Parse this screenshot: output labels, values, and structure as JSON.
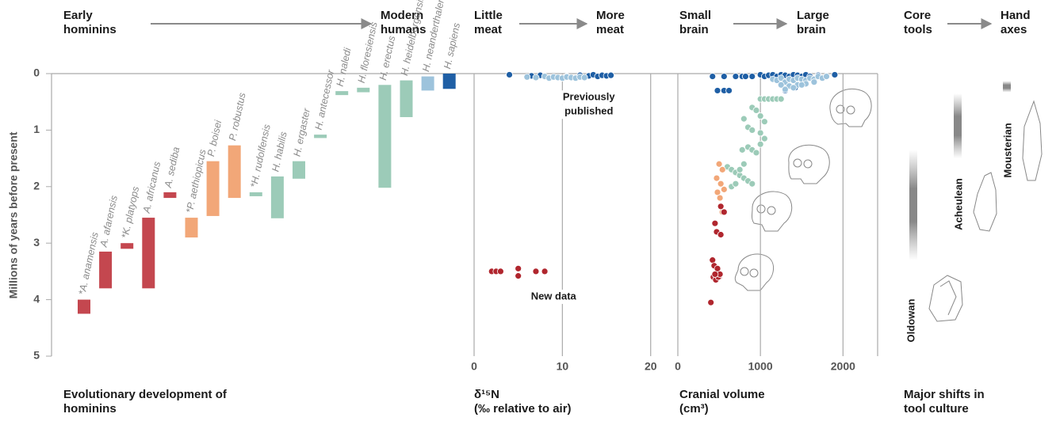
{
  "chart_data": [
    {
      "type": "range_bar",
      "header": [
        [
          "Early",
          "hominins"
        ],
        [
          "Modern",
          "humans"
        ]
      ],
      "title": [
        "Evolutionary development of",
        "hominins"
      ],
      "ylabel": "Millions of years before present",
      "ylim": [
        0,
        5
      ],
      "yticks": [
        0,
        1,
        2,
        3,
        4,
        5
      ],
      "categories": [
        "*A. anamensis",
        "A. afarensis",
        "*K. platyops",
        "A. africanus",
        "A. sediba",
        "*P. aethiopicus",
        "P. boisei",
        "P. robustus",
        "*H. rudolfensis",
        "H. habilis",
        "H. ergaster",
        "H. antecessor",
        "H. naledi",
        "H. floresiensis",
        "H. erectus",
        "H. heidelbergensis",
        "H. neanderthalensis",
        "H. sapiens"
      ],
      "values": [
        [
          4.0,
          4.25
        ],
        [
          3.15,
          3.8
        ],
        [
          3.0,
          3.1
        ],
        [
          2.55,
          3.8
        ],
        [
          2.1,
          2.2
        ],
        [
          2.55,
          2.9
        ],
        [
          1.55,
          2.52
        ],
        [
          1.27,
          2.2
        ],
        [
          2.1,
          2.17
        ],
        [
          1.82,
          2.56
        ],
        [
          1.55,
          1.86
        ],
        [
          1.08,
          1.14
        ],
        [
          0.31,
          0.38
        ],
        [
          0.25,
          0.33
        ],
        [
          0.2,
          2.02
        ],
        [
          0.12,
          0.77
        ],
        [
          0.05,
          0.3
        ],
        [
          0,
          0.27
        ]
      ],
      "colors": [
        "#c4474f",
        "#c4474f",
        "#c4474f",
        "#c4474f",
        "#c4474f",
        "#f2a778",
        "#f2a778",
        "#f2a778",
        "#9ccbb8",
        "#9ccbb8",
        "#9ccbb8",
        "#9ccbb8",
        "#9ccbb8",
        "#9ccbb8",
        "#9ccbb8",
        "#9ccbb8",
        "#9dc3dc",
        "#1f5fa5"
      ]
    },
    {
      "type": "scatter",
      "header": [
        [
          "Little",
          "meat"
        ],
        [
          "More",
          "meat"
        ]
      ],
      "title": [
        "δ¹⁵N",
        "(‰ relative to air)"
      ],
      "xlim": [
        0,
        22
      ],
      "xticks": [
        0,
        10,
        20
      ],
      "ylim": [
        0,
        5
      ],
      "annotations": [
        {
          "text": [
            "Previously",
            "published"
          ],
          "x": 13,
          "y": 0.55
        },
        {
          "text": [
            "New data"
          ],
          "x": 9,
          "y": 3.95
        }
      ],
      "series": [
        {
          "color": "#1f5fa5",
          "x": [
            4,
            6.5,
            7.5,
            10.5,
            12,
            13,
            13.5,
            14,
            14.5,
            15,
            15.5
          ],
          "values": [
            0.02,
            0.04,
            0.03,
            0.05,
            0.03,
            0.04,
            0.02,
            0.05,
            0.03,
            0.04,
            0.03
          ]
        },
        {
          "color": "#9dc3dc",
          "x": [
            6,
            7,
            8,
            8.5,
            9,
            9.5,
            10,
            10.5,
            11,
            11.5,
            12,
            12.5
          ],
          "values": [
            0.06,
            0.07,
            0.05,
            0.08,
            0.06,
            0.07,
            0.08,
            0.06,
            0.07,
            0.08,
            0.06,
            0.07
          ]
        },
        {
          "color": "#b0262e",
          "x": [
            2,
            2.5,
            3,
            5,
            5,
            7,
            8
          ],
          "values": [
            3.5,
            3.5,
            3.5,
            3.45,
            3.58,
            3.5,
            3.5
          ]
        }
      ]
    },
    {
      "type": "scatter",
      "header": [
        [
          "Small",
          "brain"
        ],
        [
          "Large",
          "brain"
        ]
      ],
      "title": [
        "Cranial volume",
        "(cm³)"
      ],
      "xlim": [
        0,
        2400
      ],
      "xticks": [
        0,
        1000,
        2000
      ],
      "ylim": [
        0,
        5
      ],
      "series": [
        {
          "color": "#1f5fa5",
          "x": [
            420,
            480,
            560,
            700,
            780,
            820,
            900,
            1000,
            1050,
            1100,
            1150,
            1200,
            1250,
            1300,
            1350,
            1400,
            1450,
            1500,
            1550,
            1600,
            1700,
            1800,
            1900,
            560,
            620,
            1300,
            1420
          ],
          "values": [
            0.05,
            0.3,
            0.3,
            0.05,
            0.05,
            0.05,
            0.05,
            0.02,
            0.05,
            0.03,
            0.02,
            0.05,
            0.02,
            0.03,
            0.05,
            0.02,
            0.03,
            0.05,
            0.02,
            0.05,
            0.03,
            0.05,
            0.02,
            0.05,
            0.3,
            0.3,
            0.25
          ]
        },
        {
          "color": "#9dc3dc",
          "x": [
            1150,
            1200,
            1250,
            1300,
            1350,
            1400,
            1450,
            1500,
            1550,
            1600,
            1650,
            1700,
            1750,
            1800,
            1250,
            1350,
            1450,
            1550,
            1650,
            1300,
            1400,
            1500
          ],
          "values": [
            0.1,
            0.12,
            0.08,
            0.15,
            0.1,
            0.12,
            0.08,
            0.1,
            0.12,
            0.08,
            0.1,
            0.05,
            0.08,
            0.05,
            0.2,
            0.22,
            0.2,
            0.18,
            0.15,
            0.28,
            0.25,
            0.2
          ]
        },
        {
          "color": "#9ccbb8",
          "x": [
            1000,
            1050,
            1100,
            1150,
            1200,
            1250,
            900,
            950,
            1000,
            1050,
            800,
            850,
            900,
            1000,
            1050,
            780,
            850,
            900,
            950,
            1000,
            600,
            650,
            700,
            750,
            800,
            850,
            900,
            650,
            700,
            750,
            800
          ],
          "values": [
            0.45,
            0.45,
            0.45,
            0.45,
            0.45,
            0.45,
            0.6,
            0.65,
            0.75,
            0.85,
            0.8,
            0.95,
            1.0,
            1.05,
            1.15,
            1.35,
            1.3,
            1.35,
            1.4,
            1.25,
            1.65,
            1.7,
            1.75,
            1.8,
            1.85,
            1.9,
            1.95,
            2.0,
            1.95,
            1.7,
            1.6
          ]
        },
        {
          "color": "#f2a778",
          "x": [
            500,
            540,
            470,
            520,
            560,
            480,
            510,
            540
          ],
          "values": [
            1.6,
            1.7,
            1.85,
            1.95,
            2.05,
            2.1,
            2.2,
            2.45
          ]
        },
        {
          "color": "#b0262e",
          "x": [
            520,
            560,
            450,
            470,
            520,
            420,
            440,
            480,
            500,
            430,
            460,
            490,
            510,
            450,
            400
          ],
          "values": [
            2.35,
            2.45,
            2.65,
            2.8,
            2.85,
            3.3,
            3.4,
            3.45,
            3.6,
            3.6,
            3.65,
            3.6,
            3.55,
            3.55,
            4.05
          ]
        }
      ]
    },
    {
      "type": "tool_range",
      "header": [
        [
          "Core",
          "tools"
        ],
        [
          "Hand",
          "axes"
        ]
      ],
      "title": [
        "Major shifts in",
        "tool culture"
      ],
      "ylim": [
        0,
        5
      ],
      "categories": [
        "Oldowan",
        "Acheulean",
        "Mousterian"
      ],
      "values": [
        [
          1.35,
          3.3
        ],
        [
          0.35,
          1.5
        ],
        [
          0.13,
          0.33
        ]
      ]
    }
  ]
}
